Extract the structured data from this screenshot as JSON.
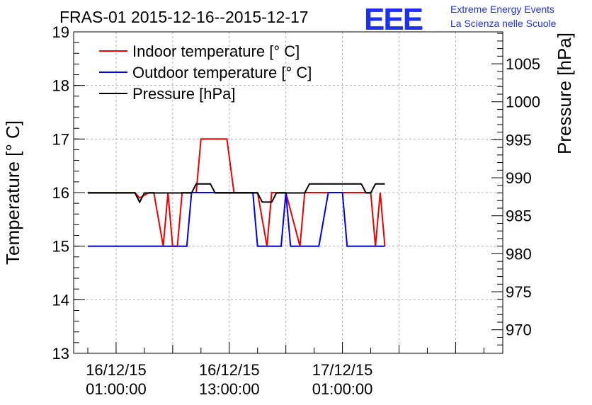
{
  "title": "FRAS-01 2015-12-16--2015-12-17",
  "logo": {
    "letters": "EEE",
    "line1": "Extreme Energy Events",
    "line2": "La Scienza nelle Scuole",
    "color": "#1f2ff0"
  },
  "chart_data": {
    "type": "line",
    "title": "FRAS-01 2015-12-16--2015-12-17",
    "ylabel": "Temperature [° C]",
    "y2label": "Pressure [hPa]",
    "ylim": [
      13,
      19
    ],
    "y2lim": [
      966.9,
      1009.2
    ],
    "yticks": [
      "13",
      "14",
      "15",
      "16",
      "17",
      "18",
      "19"
    ],
    "y2ticks": [
      "970",
      "975",
      "980",
      "985",
      "990",
      "995",
      "1000",
      "1005"
    ],
    "xlim": [
      "2015-12-15 20:30",
      "2015-12-17 18:00"
    ],
    "xticks": [
      {
        "x": "2015-12-16 01:00",
        "line1": "16/12/15",
        "line2": "01:00:00"
      },
      {
        "x": "2015-12-16 13:00",
        "line1": "16/12/15",
        "line2": "13:00:00"
      },
      {
        "x": "2015-12-17 01:00",
        "line1": "17/12/15",
        "line2": "01:00:00"
      }
    ],
    "grid": true,
    "legend": "top-left",
    "series": [
      {
        "name": "Indoor temperature [° C]",
        "color": "#ee0000",
        "axis": "left",
        "points": [
          [
            "2015-12-15 22:00",
            16
          ],
          [
            "2015-12-16 03:00",
            16
          ],
          [
            "2015-12-16 03:30",
            15.9
          ],
          [
            "2015-12-16 04:30",
            16
          ],
          [
            "2015-12-16 05:00",
            16
          ],
          [
            "2015-12-16 06:00",
            15
          ],
          [
            "2015-12-16 06:30",
            16
          ],
          [
            "2015-12-16 07:00",
            15
          ],
          [
            "2015-12-16 07:30",
            15
          ],
          [
            "2015-12-16 08:00",
            16
          ],
          [
            "2015-12-16 09:30",
            16
          ],
          [
            "2015-12-16 10:00",
            17
          ],
          [
            "2015-12-16 12:45",
            17
          ],
          [
            "2015-12-16 13:30",
            16
          ],
          [
            "2015-12-16 14:30",
            16
          ],
          [
            "2015-12-16 16:00",
            16
          ],
          [
            "2015-12-16 17:00",
            15
          ],
          [
            "2015-12-16 17:30",
            16
          ],
          [
            "2015-12-16 19:00",
            16
          ],
          [
            "2015-12-16 20:30",
            15
          ],
          [
            "2015-12-16 21:00",
            16
          ],
          [
            "2015-12-16 22:00",
            16
          ],
          [
            "2015-12-17 01:00",
            16
          ],
          [
            "2015-12-17 04:00",
            16
          ],
          [
            "2015-12-17 04:30",
            15
          ],
          [
            "2015-12-17 05:00",
            16
          ],
          [
            "2015-12-17 05:30",
            15
          ]
        ]
      },
      {
        "name": "Outdoor temperature [° C]",
        "color": "#0000ee",
        "axis": "left",
        "points": [
          [
            "2015-12-15 22:00",
            15
          ],
          [
            "2015-12-16 08:30",
            15
          ],
          [
            "2015-12-16 09:00",
            16
          ],
          [
            "2015-12-16 15:30",
            16
          ],
          [
            "2015-12-16 16:00",
            15
          ],
          [
            "2015-12-16 18:30",
            15
          ],
          [
            "2015-12-16 19:00",
            16
          ],
          [
            "2015-12-16 19:30",
            15
          ],
          [
            "2015-12-16 22:30",
            15
          ],
          [
            "2015-12-16 23:30",
            16
          ],
          [
            "2015-12-17 01:00",
            16
          ],
          [
            "2015-12-17 01:30",
            15
          ],
          [
            "2015-12-17 05:30",
            15
          ]
        ]
      },
      {
        "name": "Pressure [hPa]",
        "color": "#000000",
        "axis": "right",
        "points": [
          [
            "2015-12-15 22:00",
            988
          ],
          [
            "2015-12-16 03:00",
            988
          ],
          [
            "2015-12-16 03:30",
            986.8
          ],
          [
            "2015-12-16 04:00",
            988
          ],
          [
            "2015-12-16 09:00",
            988
          ],
          [
            "2015-12-16 09:30",
            989.2
          ],
          [
            "2015-12-16 11:00",
            989.2
          ],
          [
            "2015-12-16 11:30",
            988
          ],
          [
            "2015-12-16 16:00",
            988
          ],
          [
            "2015-12-16 16:30",
            986.8
          ],
          [
            "2015-12-16 17:30",
            986.8
          ],
          [
            "2015-12-16 18:00",
            988
          ],
          [
            "2015-12-16 21:00",
            988
          ],
          [
            "2015-12-16 21:30",
            989.2
          ],
          [
            "2015-12-17 03:00",
            989.2
          ],
          [
            "2015-12-17 03:30",
            988
          ],
          [
            "2015-12-17 04:00",
            988
          ],
          [
            "2015-12-17 04:30",
            989.2
          ],
          [
            "2015-12-17 05:30",
            989.2
          ]
        ]
      }
    ]
  }
}
